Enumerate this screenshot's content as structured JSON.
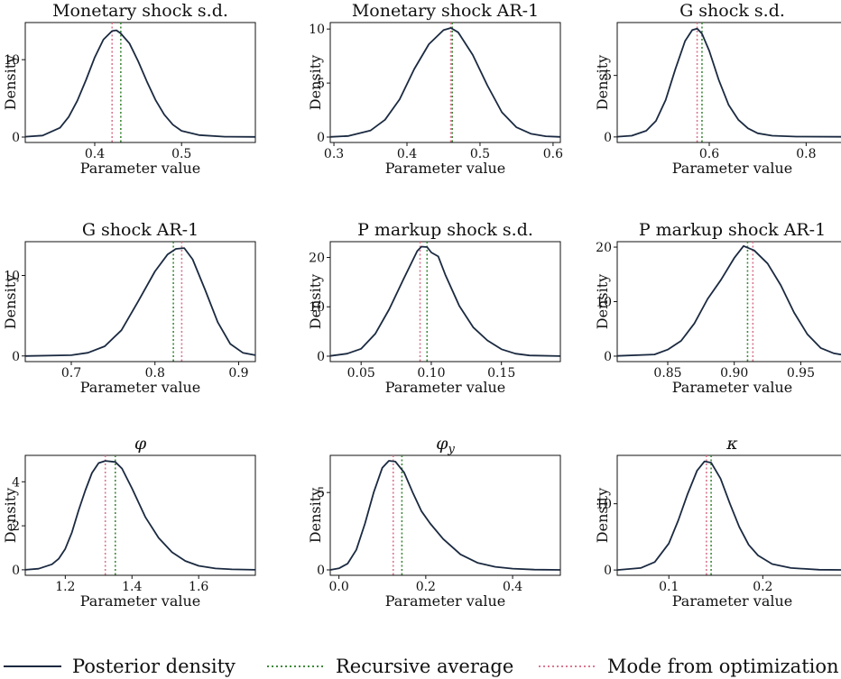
{
  "colors": {
    "posterior": "#1b2a41",
    "recursive": "#3f8a3a",
    "mode": "#d9778f"
  },
  "legend": {
    "posterior_label": "Posterior density",
    "recursive_label": "Recursive average",
    "mode_label": "Mode from optimization"
  },
  "chart_data": [
    {
      "type": "line",
      "title": "Monetary shock s.d.",
      "xlabel": "Parameter value",
      "ylabel": "Density",
      "xlim": [
        0.32,
        0.585
      ],
      "ylim": [
        -0.7,
        14.8
      ],
      "xticks": [
        0.4,
        0.5
      ],
      "xtick_labels": [
        "0.4",
        "0.5"
      ],
      "yticks": [
        0,
        10
      ],
      "ytick_labels": [
        "0",
        "10"
      ],
      "recursive_average": 0.43,
      "mode": 0.42,
      "x": [
        0.32,
        0.34,
        0.36,
        0.37,
        0.38,
        0.39,
        0.4,
        0.41,
        0.42,
        0.425,
        0.43,
        0.44,
        0.45,
        0.46,
        0.47,
        0.48,
        0.49,
        0.5,
        0.52,
        0.55,
        0.585
      ],
      "y": [
        0.05,
        0.2,
        1.2,
        2.6,
        4.7,
        7.4,
        10.3,
        12.6,
        13.7,
        13.8,
        13.4,
        12.1,
        9.8,
        7.2,
        4.8,
        2.9,
        1.6,
        0.8,
        0.25,
        0.05,
        0.02
      ]
    },
    {
      "type": "line",
      "title": "Monetary shock AR-1",
      "xlabel": "Parameter value",
      "ylabel": "Density",
      "xlim": [
        0.295,
        0.61
      ],
      "ylim": [
        -0.5,
        10.6
      ],
      "xticks": [
        0.3,
        0.4,
        0.5,
        0.6
      ],
      "xtick_labels": [
        "0.3",
        "0.4",
        "0.5",
        "0.6"
      ],
      "yticks": [
        0,
        5,
        10
      ],
      "ytick_labels": [
        "0",
        "5",
        "10"
      ],
      "recursive_average": 0.462,
      "mode": 0.46,
      "x": [
        0.295,
        0.32,
        0.35,
        0.37,
        0.39,
        0.41,
        0.43,
        0.45,
        0.46,
        0.47,
        0.49,
        0.51,
        0.53,
        0.55,
        0.57,
        0.59,
        0.61
      ],
      "y": [
        0.02,
        0.1,
        0.6,
        1.6,
        3.5,
        6.3,
        8.6,
        9.9,
        10.1,
        9.7,
        7.6,
        4.8,
        2.3,
        0.9,
        0.3,
        0.08,
        0.02
      ]
    },
    {
      "type": "line",
      "title": "G shock s.d.",
      "xlabel": "Parameter value",
      "ylabel": "Density",
      "xlim": [
        0.41,
        0.885
      ],
      "ylim": [
        -0.45,
        9.3
      ],
      "xticks": [
        0.6,
        0.8
      ],
      "xtick_labels": [
        "0.6",
        "0.8"
      ],
      "yticks": [
        0,
        5
      ],
      "ytick_labels": [
        "0",
        "5"
      ],
      "recursive_average": 0.585,
      "mode": 0.575,
      "x": [
        0.41,
        0.44,
        0.47,
        0.49,
        0.51,
        0.53,
        0.55,
        0.565,
        0.575,
        0.585,
        0.6,
        0.62,
        0.64,
        0.66,
        0.68,
        0.7,
        0.73,
        0.78,
        0.885
      ],
      "y": [
        0.02,
        0.1,
        0.5,
        1.3,
        3.0,
        5.5,
        7.8,
        8.7,
        8.8,
        8.4,
        7.0,
        4.6,
        2.6,
        1.4,
        0.7,
        0.3,
        0.1,
        0.03,
        0.01
      ]
    },
    {
      "type": "line",
      "title": "G shock AR-1",
      "xlabel": "Parameter value",
      "ylabel": "Density",
      "xlim": [
        0.645,
        0.92
      ],
      "ylim": [
        -0.7,
        14.2
      ],
      "xticks": [
        0.7,
        0.8,
        0.9
      ],
      "xtick_labels": [
        "0.7",
        "0.8",
        "0.9"
      ],
      "yticks": [
        0,
        10
      ],
      "ytick_labels": [
        "0",
        "10"
      ],
      "recursive_average": 0.822,
      "mode": 0.832,
      "x": [
        0.645,
        0.7,
        0.72,
        0.74,
        0.76,
        0.78,
        0.8,
        0.815,
        0.825,
        0.835,
        0.845,
        0.86,
        0.875,
        0.89,
        0.905,
        0.92
      ],
      "y": [
        0.0,
        0.1,
        0.4,
        1.2,
        3.2,
        6.8,
        10.5,
        12.6,
        13.3,
        13.4,
        12.0,
        8.2,
        4.2,
        1.5,
        0.4,
        0.1
      ]
    },
    {
      "type": "line",
      "title": "P markup shock s.d.",
      "xlabel": "Parameter value",
      "ylabel": "Density",
      "xlim": [
        0.028,
        0.192
      ],
      "ylim": [
        -1.1,
        23.2
      ],
      "xticks": [
        0.05,
        0.1,
        0.15
      ],
      "xtick_labels": [
        "0.05",
        "0.10",
        "0.15"
      ],
      "yticks": [
        0,
        10,
        20
      ],
      "ytick_labels": [
        "0",
        "10",
        "20"
      ],
      "recursive_average": 0.097,
      "mode": 0.092,
      "x": [
        0.028,
        0.04,
        0.05,
        0.06,
        0.07,
        0.08,
        0.09,
        0.093,
        0.097,
        0.1,
        0.105,
        0.11,
        0.12,
        0.13,
        0.14,
        0.15,
        0.16,
        0.17,
        0.192
      ],
      "y": [
        0.05,
        0.5,
        1.5,
        4.5,
        9.5,
        15.5,
        21.3,
        22.2,
        22.1,
        21.0,
        20.2,
        16.5,
        10.2,
        5.8,
        3.2,
        1.4,
        0.5,
        0.15,
        0.02
      ]
    },
    {
      "type": "line",
      "title": "P markup shock AR-1",
      "xlabel": "Parameter value",
      "ylabel": "Density",
      "xlim": [
        0.812,
        0.985
      ],
      "ylim": [
        -1.0,
        21.0
      ],
      "xticks": [
        0.85,
        0.9,
        0.95
      ],
      "xtick_labels": [
        "0.85",
        "0.90",
        "0.95"
      ],
      "yticks": [
        0,
        10,
        20
      ],
      "ytick_labels": [
        "0",
        "10",
        "20"
      ],
      "recursive_average": 0.91,
      "mode": 0.914,
      "x": [
        0.812,
        0.84,
        0.85,
        0.86,
        0.87,
        0.88,
        0.89,
        0.9,
        0.907,
        0.915,
        0.925,
        0.935,
        0.945,
        0.955,
        0.965,
        0.975,
        0.985
      ],
      "y": [
        0.05,
        0.3,
        1.2,
        2.8,
        6.0,
        10.5,
        14.0,
        18.0,
        20.2,
        19.4,
        17.0,
        13.0,
        8.0,
        4.0,
        1.5,
        0.5,
        0.1
      ]
    },
    {
      "type": "line",
      "title": "φ",
      "xlabel": "Parameter value",
      "ylabel": "Density",
      "xlim": [
        1.08,
        1.77
      ],
      "ylim": [
        -0.25,
        5.2
      ],
      "xticks": [
        1.2,
        1.4,
        1.6
      ],
      "xtick_labels": [
        "1.2",
        "1.4",
        "1.6"
      ],
      "yticks": [
        0,
        2,
        4
      ],
      "ytick_labels": [
        "0",
        "2",
        "4"
      ],
      "recursive_average": 1.35,
      "mode": 1.32,
      "x": [
        1.08,
        1.12,
        1.16,
        1.18,
        1.2,
        1.22,
        1.24,
        1.26,
        1.28,
        1.3,
        1.32,
        1.35,
        1.37,
        1.4,
        1.44,
        1.48,
        1.52,
        1.56,
        1.6,
        1.65,
        1.7,
        1.77
      ],
      "y": [
        0.0,
        0.05,
        0.25,
        0.5,
        0.95,
        1.7,
        2.7,
        3.6,
        4.4,
        4.85,
        4.95,
        4.9,
        4.6,
        3.7,
        2.4,
        1.45,
        0.8,
        0.4,
        0.18,
        0.06,
        0.02,
        0.0
      ]
    },
    {
      "type": "line",
      "title": "φy",
      "xlabel": "Parameter value",
      "ylabel": "Density",
      "xlim": [
        -0.02,
        0.51
      ],
      "ylim": [
        -0.35,
        7.4
      ],
      "xticks": [
        0.0,
        0.2,
        0.4
      ],
      "xtick_labels": [
        "0.0",
        "0.2",
        "0.4"
      ],
      "yticks": [
        0,
        5
      ],
      "ytick_labels": [
        "0",
        "5"
      ],
      "recursive_average": 0.145,
      "mode": 0.125,
      "x": [
        -0.02,
        0.0,
        0.02,
        0.04,
        0.06,
        0.08,
        0.1,
        0.115,
        0.13,
        0.15,
        0.17,
        0.19,
        0.21,
        0.24,
        0.28,
        0.32,
        0.36,
        0.4,
        0.45,
        0.51
      ],
      "y": [
        0.0,
        0.1,
        0.4,
        1.3,
        3.0,
        5.0,
        6.6,
        7.05,
        7.0,
        6.3,
        5.0,
        3.8,
        3.0,
        2.0,
        1.0,
        0.45,
        0.2,
        0.08,
        0.02,
        0.0
      ]
    },
    {
      "type": "line",
      "title": "κ",
      "xlabel": "Parameter value",
      "ylabel": "Density",
      "xlim": [
        0.045,
        0.29
      ],
      "ylim": [
        -0.8,
        17.3
      ],
      "xticks": [
        0.1,
        0.2
      ],
      "xtick_labels": [
        "0.1",
        "0.2"
      ],
      "yticks": [
        0,
        10
      ],
      "ytick_labels": [
        "0",
        "10"
      ],
      "recursive_average": 0.145,
      "mode": 0.14,
      "x": [
        0.045,
        0.07,
        0.085,
        0.1,
        0.11,
        0.12,
        0.13,
        0.138,
        0.145,
        0.155,
        0.165,
        0.175,
        0.185,
        0.195,
        0.21,
        0.23,
        0.26,
        0.29
      ],
      "y": [
        0.0,
        0.3,
        1.2,
        4.0,
        7.5,
        11.5,
        15.0,
        16.4,
        16.2,
        13.8,
        10.0,
        6.5,
        3.8,
        2.2,
        0.9,
        0.3,
        0.05,
        0.0
      ]
    }
  ]
}
